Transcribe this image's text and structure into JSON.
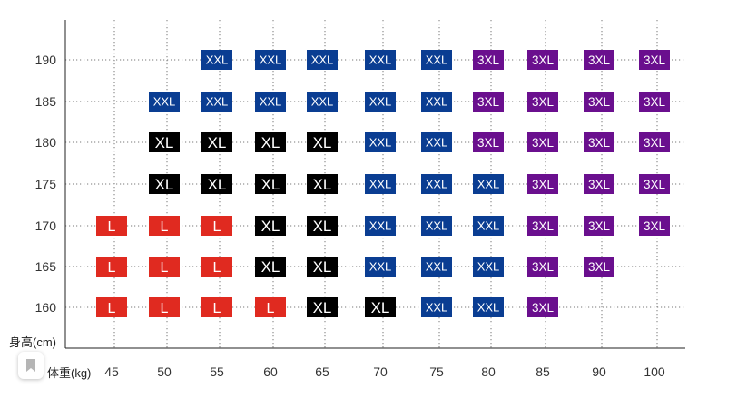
{
  "chart_data": {
    "type": "heatmap",
    "title": "",
    "xlabel": "体重(kg)",
    "ylabel": "身高(cm)",
    "x": [
      45,
      50,
      55,
      60,
      65,
      70,
      75,
      80,
      85,
      90,
      100
    ],
    "y": [
      160,
      165,
      170,
      175,
      180,
      185,
      190
    ],
    "grid": true,
    "size_colors": {
      "L": "#e02a20",
      "XL": "#000000",
      "XXL": "#0a3d92",
      "3XL": "#6a0f8e"
    },
    "rows": [
      {
        "height": 190,
        "sizes": [
          "",
          "",
          "XXL",
          "XXL",
          "XXL",
          "XXL",
          "XXL",
          "3XL",
          "3XL",
          "3XL",
          "3XL"
        ]
      },
      {
        "height": 185,
        "sizes": [
          "",
          "XXL",
          "XXL",
          "XXL",
          "XXL",
          "XXL",
          "XXL",
          "3XL",
          "3XL",
          "3XL",
          "3XL"
        ]
      },
      {
        "height": 180,
        "sizes": [
          "",
          "XL",
          "XL",
          "XL",
          "XL",
          "XXL",
          "XXL",
          "3XL",
          "3XL",
          "3XL",
          "3XL"
        ]
      },
      {
        "height": 175,
        "sizes": [
          "",
          "XL",
          "XL",
          "XL",
          "XL",
          "XXL",
          "XXL",
          "XXL",
          "3XL",
          "3XL",
          "3XL"
        ]
      },
      {
        "height": 170,
        "sizes": [
          "L",
          "L",
          "L",
          "XL",
          "XL",
          "XXL",
          "XXL",
          "XXL",
          "3XL",
          "3XL",
          "3XL"
        ]
      },
      {
        "height": 165,
        "sizes": [
          "L",
          "L",
          "L",
          "XL",
          "XL",
          "XXL",
          "XXL",
          "XXL",
          "3XL",
          "3XL",
          ""
        ]
      },
      {
        "height": 160,
        "sizes": [
          "L",
          "L",
          "L",
          "L",
          "XL",
          "XL",
          "XXL",
          "XXL",
          "3XL",
          "",
          ""
        ]
      }
    ]
  },
  "widget": {
    "icon": "bookmark-icon"
  }
}
